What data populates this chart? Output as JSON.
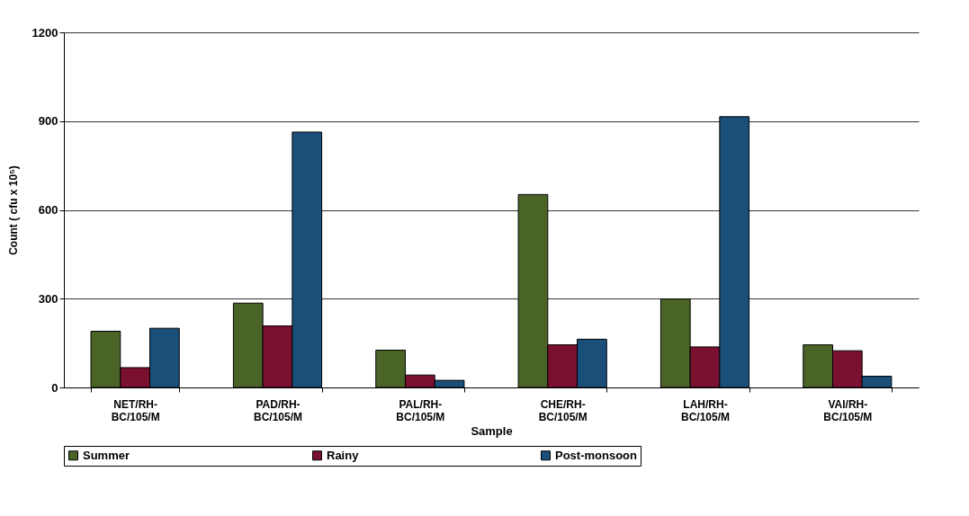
{
  "chart_data": {
    "type": "bar",
    "xlabel": "Sample",
    "ylabel": "Count ( cfu x 10⁵)",
    "categories": [
      "NET/RH-BC/105/M",
      "PAD/RH-BC/105/M",
      "PAL/RH-BC/105/M",
      "CHE/RH-BC/105/M",
      "LAH/RH-BC/105/M",
      "VAI/RH-BC/105/M"
    ],
    "series": [
      {
        "name": "Summer",
        "color": "#4a6428",
        "values": [
          190,
          285,
          126,
          652,
          299,
          144
        ]
      },
      {
        "name": "Rainy",
        "color": "#7a1030",
        "values": [
          67,
          208,
          42,
          144,
          137,
          124
        ]
      },
      {
        "name": "Post-monsoon",
        "color": "#1a4f7a",
        "values": [
          200,
          863,
          24,
          163,
          915,
          38
        ]
      }
    ],
    "ylim": [
      0,
      1200
    ],
    "yticks": [
      0,
      300,
      600,
      900,
      1200
    ],
    "grid": "y",
    "legend": "bottom"
  }
}
